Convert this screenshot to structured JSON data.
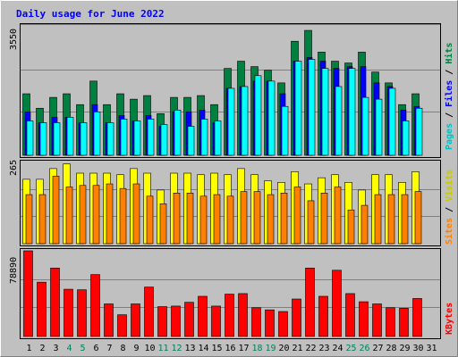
{
  "title": "Daily usage for June 2022",
  "colors": {
    "background": "#c0c0c0",
    "plot_bg": "#c0c0c0",
    "title": "#0000ff",
    "hits": "#008040",
    "files": "#0000ff",
    "pages": "#00ffff",
    "visits": "#ffff00",
    "sites": "#ff8000",
    "kbytes": "#ff0000",
    "day_normal": "#000000",
    "day_weekend": "#00805c"
  },
  "days": [
    "1",
    "2",
    "3",
    "4",
    "5",
    "6",
    "7",
    "8",
    "9",
    "10",
    "11",
    "12",
    "13",
    "14",
    "15",
    "16",
    "17",
    "18",
    "19",
    "20",
    "21",
    "22",
    "23",
    "24",
    "25",
    "26",
    "27",
    "28",
    "29",
    "30",
    "31"
  ],
  "weekend_days": [
    4,
    5,
    11,
    12,
    18,
    19,
    25,
    26
  ],
  "chart_data": [
    {
      "type": "bar",
      "name": "hits-files-pages",
      "ymax_label": "3550",
      "ylim": [
        0,
        3550
      ],
      "legend": [
        "Pages",
        "Files",
        "Hits"
      ],
      "series": [
        {
          "name": "Hits",
          "values": [
            1700,
            1300,
            1600,
            1700,
            1400,
            2050,
            1400,
            1700,
            1550,
            1650,
            1150,
            1600,
            1600,
            1650,
            1400,
            2400,
            2600,
            2450,
            2350,
            2000,
            3150,
            3450,
            2850,
            2600,
            2550,
            2850,
            2300,
            2000,
            1400,
            1700,
            0
          ]
        },
        {
          "name": "Files",
          "values": [
            1200,
            900,
            1050,
            1050,
            900,
            1400,
            900,
            1100,
            950,
            1100,
            800,
            1200,
            1200,
            1250,
            900,
            1850,
            1900,
            2050,
            2050,
            1700,
            2600,
            2700,
            2600,
            2400,
            2450,
            2450,
            2000,
            1900,
            1250,
            1350,
            0
          ]
        },
        {
          "name": "Pages",
          "values": [
            950,
            900,
            900,
            1050,
            900,
            1200,
            900,
            1000,
            950,
            1000,
            850,
            1250,
            800,
            1000,
            950,
            1850,
            1900,
            2200,
            2050,
            1350,
            2600,
            2650,
            2400,
            1900,
            2400,
            1600,
            1550,
            1850,
            950,
            1300,
            0
          ]
        }
      ]
    },
    {
      "type": "bar",
      "name": "visits-sites",
      "ymax_label": "265",
      "ylim": [
        0,
        265
      ],
      "legend": [
        "Sites",
        "Visits"
      ],
      "series": [
        {
          "name": "Visits",
          "values": [
            210,
            210,
            245,
            260,
            230,
            230,
            230,
            225,
            245,
            230,
            175,
            230,
            230,
            225,
            230,
            225,
            245,
            225,
            205,
            200,
            235,
            195,
            215,
            225,
            200,
            175,
            225,
            225,
            200,
            235,
            0
          ]
        },
        {
          "name": "Sites",
          "values": [
            160,
            160,
            220,
            185,
            190,
            190,
            195,
            180,
            195,
            155,
            130,
            165,
            165,
            155,
            160,
            155,
            170,
            170,
            160,
            165,
            185,
            140,
            165,
            185,
            110,
            125,
            160,
            160,
            160,
            170,
            0
          ]
        }
      ]
    },
    {
      "type": "bar",
      "name": "kbytes",
      "ymax_label": "78890",
      "ylim": [
        0,
        78890
      ],
      "legend": [
        "KBytes"
      ],
      "series": [
        {
          "name": "KBytes",
          "values": [
            78890,
            50000,
            63000,
            43500,
            43000,
            57000,
            30000,
            20000,
            30000,
            45500,
            27500,
            28000,
            31500,
            37000,
            28000,
            39000,
            39500,
            26500,
            24500,
            23000,
            34500,
            63000,
            37000,
            61000,
            39500,
            32000,
            30000,
            26500,
            26000,
            35000,
            0
          ]
        }
      ]
    }
  ]
}
